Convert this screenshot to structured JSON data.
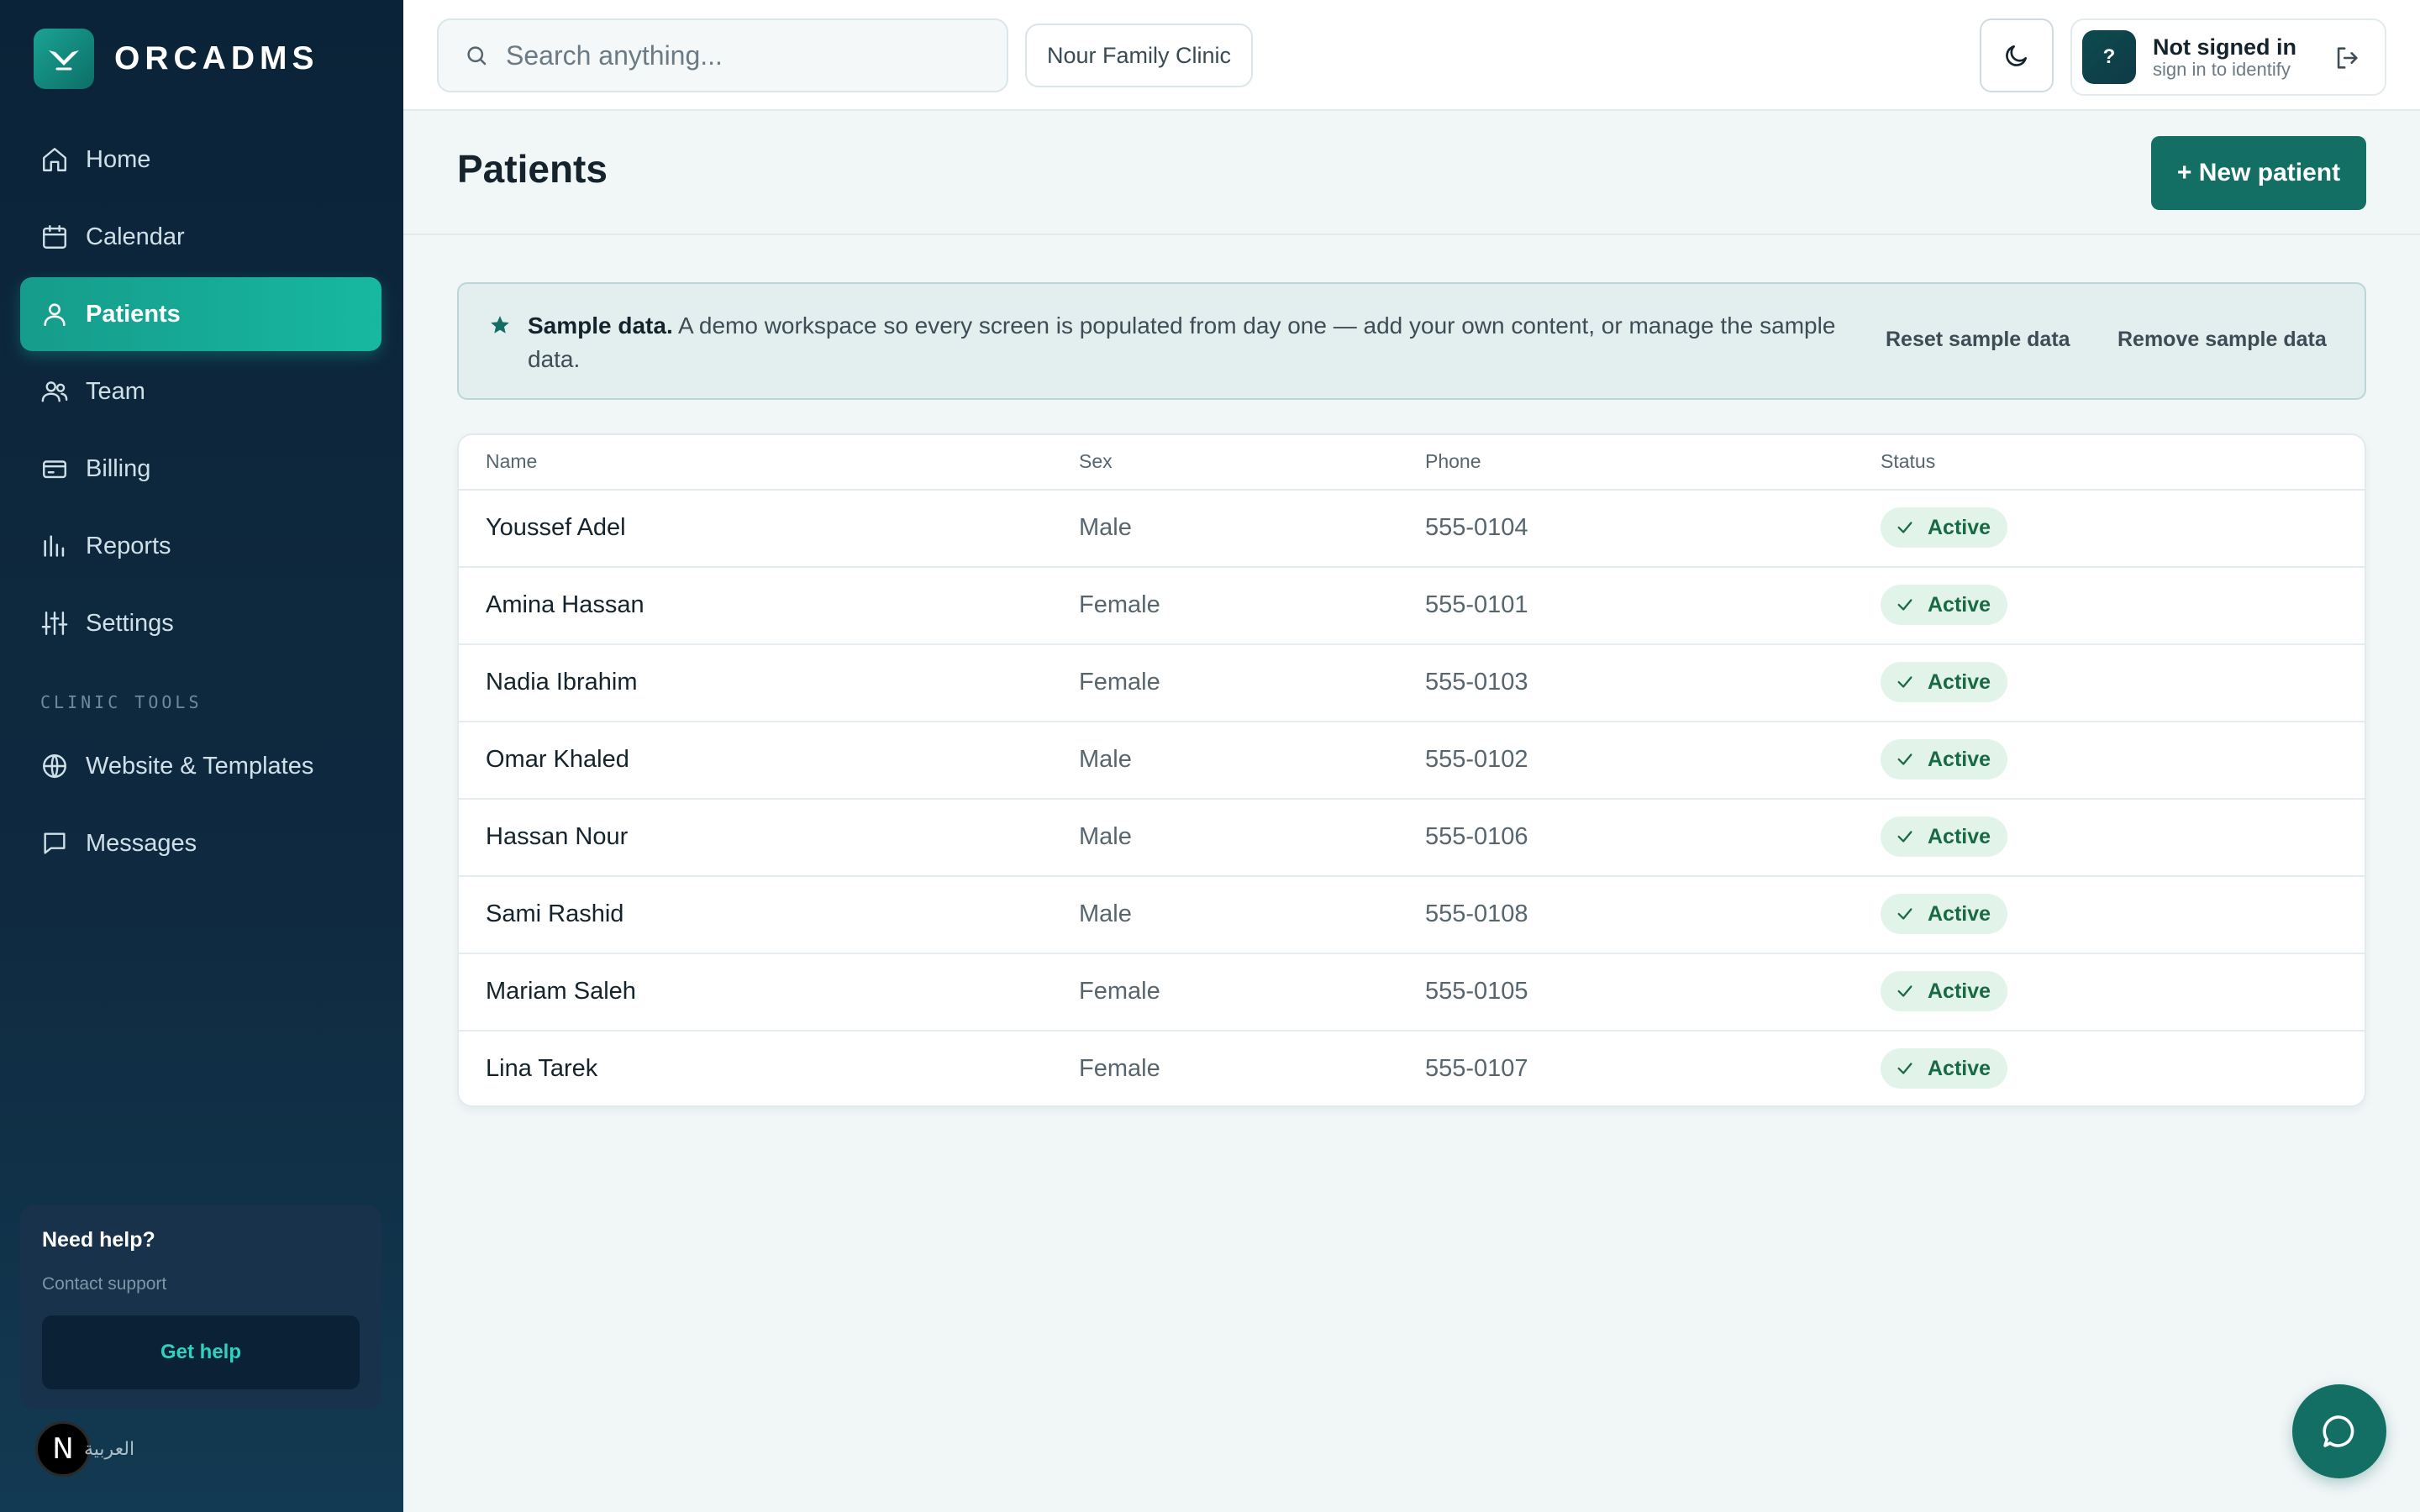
{
  "brand": {
    "name": "ORCADMS"
  },
  "sidebar": {
    "items": [
      {
        "label": "Home",
        "icon": "home-icon"
      },
      {
        "label": "Calendar",
        "icon": "calendar-icon"
      },
      {
        "label": "Patients",
        "icon": "user-icon",
        "active": true
      },
      {
        "label": "Team",
        "icon": "users-icon"
      },
      {
        "label": "Billing",
        "icon": "credit-card-icon"
      },
      {
        "label": "Reports",
        "icon": "bar-chart-icon"
      },
      {
        "label": "Settings",
        "icon": "sliders-icon"
      }
    ],
    "section_label": "CLINIC TOOLS",
    "tools": [
      {
        "label": "Website & Templates",
        "icon": "globe-icon"
      },
      {
        "label": "Messages",
        "icon": "message-icon"
      }
    ],
    "help": {
      "title": "Need help?",
      "subtitle": "Contact support",
      "button": "Get help"
    },
    "language": {
      "badge": "N",
      "label": "العربية"
    }
  },
  "topbar": {
    "search_placeholder": "Search anything...",
    "clinic": "Nour Family Clinic",
    "user": {
      "avatar": "?",
      "name": "Not signed in",
      "subtitle": "sign in to identify"
    }
  },
  "page": {
    "title": "Patients",
    "new_button": "+ New patient"
  },
  "banner": {
    "title": "Sample data.",
    "text": "A demo workspace so every screen is populated from day one — add your own content, or manage the sample data.",
    "reset": "Reset sample data",
    "remove": "Remove sample data"
  },
  "table": {
    "headers": [
      "Name",
      "Sex",
      "Phone",
      "Status"
    ],
    "rows": [
      {
        "name": "Youssef Adel",
        "sex": "Male",
        "phone": "555-0104",
        "status": "Active"
      },
      {
        "name": "Amina Hassan",
        "sex": "Female",
        "phone": "555-0101",
        "status": "Active"
      },
      {
        "name": "Nadia Ibrahim",
        "sex": "Female",
        "phone": "555-0103",
        "status": "Active"
      },
      {
        "name": "Omar Khaled",
        "sex": "Male",
        "phone": "555-0102",
        "status": "Active"
      },
      {
        "name": "Hassan Nour",
        "sex": "Male",
        "phone": "555-0106",
        "status": "Active"
      },
      {
        "name": "Sami Rashid",
        "sex": "Male",
        "phone": "555-0108",
        "status": "Active"
      },
      {
        "name": "Mariam Saleh",
        "sex": "Female",
        "phone": "555-0105",
        "status": "Active"
      },
      {
        "name": "Lina Tarek",
        "sex": "Female",
        "phone": "555-0107",
        "status": "Active"
      }
    ]
  },
  "colors": {
    "accent": "#136e64",
    "active_nav": "#17b8a0",
    "sidebar_bg": "#0f2a40",
    "status_bg": "#e2f3ea",
    "status_text": "#176a43"
  }
}
